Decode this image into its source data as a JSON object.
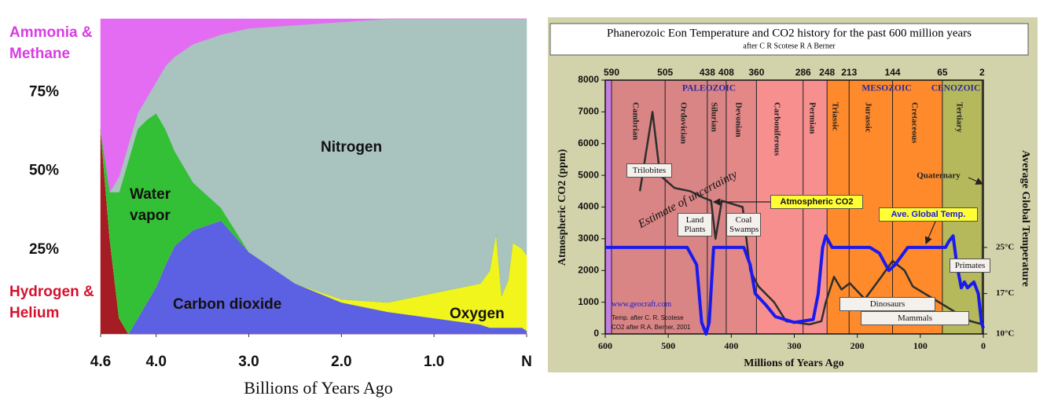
{
  "chart_data": [
    {
      "type": "area",
      "stacked": true,
      "x_label": "Billions of Years Ago",
      "x": [
        4.6,
        4.5,
        4.4,
        4.3,
        4.2,
        4.1,
        4.0,
        3.9,
        3.8,
        3.6,
        3.3,
        3.0,
        2.5,
        2.0,
        1.5,
        1.0,
        0.5,
        0.4,
        0.33,
        0.27,
        0.2,
        0.15,
        0.05,
        0
      ],
      "xlim": [
        4.6,
        0
      ],
      "xticks": [
        4.6,
        {
          "value": 4.0,
          "label": "4.0"
        },
        {
          "value": 3.0,
          "label": "3.0"
        },
        {
          "value": 2.0,
          "label": "2.0"
        },
        {
          "value": 1.0,
          "label": "1.0"
        },
        {
          "value": 0,
          "label": "N"
        }
      ],
      "ylim": [
        0,
        100
      ],
      "yticks": [
        {
          "value": 25,
          "label": "25%"
        },
        {
          "value": 50,
          "label": "50%"
        },
        {
          "value": 75,
          "label": "75%"
        }
      ],
      "series": [
        {
          "name": "Hydrogen & Helium",
          "color": "#a51c24",
          "values": [
            65,
            30,
            5,
            0,
            0,
            0,
            0,
            0,
            0,
            0,
            0,
            0,
            0,
            0,
            0,
            0,
            0,
            0,
            0,
            0,
            0,
            0,
            0,
            0
          ]
        },
        {
          "name": "Carbon dioxide",
          "color": "#5c60e2",
          "values": [
            0,
            0,
            0,
            0,
            5,
            10,
            15,
            22,
            28,
            33,
            36,
            26,
            16,
            10,
            7,
            5,
            3,
            2,
            2,
            2,
            2,
            2,
            2,
            1
          ]
        },
        {
          "name": "Oxygen",
          "color": "#f2f51c",
          "values": [
            0,
            0,
            0,
            0,
            0,
            0,
            0,
            0,
            0,
            0,
            0,
            0,
            0,
            1,
            3,
            8,
            13,
            18,
            30,
            10,
            15,
            27,
            25,
            24
          ]
        },
        {
          "name": "Water vapor",
          "color": "#34c036",
          "values": [
            0,
            15,
            40,
            55,
            60,
            58,
            55,
            43,
            30,
            15,
            4,
            0,
            0,
            0,
            0,
            0,
            0,
            0,
            0,
            0,
            0,
            0,
            0,
            0
          ]
        },
        {
          "name": "Nitrogen",
          "color": "#a9c3bf",
          "values": [
            0,
            0,
            5,
            5,
            5,
            7,
            10,
            20,
            30,
            44,
            55,
            71,
            82,
            88,
            90,
            87,
            84,
            80,
            68,
            88,
            83,
            71,
            73,
            75
          ]
        },
        {
          "name": "Ammonia & Methane",
          "color": "#e46cf2",
          "values": [
            35,
            55,
            50,
            40,
            30,
            25,
            20,
            15,
            12,
            8,
            5,
            3,
            2,
            1,
            0,
            0,
            0,
            0,
            0,
            0,
            0,
            0,
            0,
            0
          ]
        }
      ]
    },
    {
      "type": "line",
      "title": "Phanerozoic Eon  Temperature and CO2 history for the past 600 million years",
      "subtitle": "after C R Scotese  R A Berner",
      "x_label": "Millions of Years Ago",
      "y_label": "Atmospheric CO2 (ppm)",
      "y2_label": "Average Global Temperature",
      "xlim": [
        600,
        0
      ],
      "xticks": [
        600,
        500,
        400,
        300,
        200,
        100,
        0
      ],
      "top_ticks": [
        590,
        505,
        438,
        408,
        360,
        286,
        248,
        213,
        144,
        65,
        2
      ],
      "background_color": "#c57fe0",
      "periods": [
        {
          "name": "Cambrian",
          "color": "#d98585"
        },
        {
          "name": "Ordovician",
          "color": "#d98585"
        },
        {
          "name": "Silurian",
          "color": "#d98585"
        },
        {
          "name": "Devonian",
          "color": "#e38787"
        },
        {
          "name": "Carboniferous",
          "color": "#f88f8f"
        },
        {
          "name": "Permian",
          "color": "#f88f8f"
        },
        {
          "name": "Triassic",
          "color": "#ff8a2c"
        },
        {
          "name": "Jurassic",
          "color": "#ff8a2c"
        },
        {
          "name": "Cretaceous",
          "color": "#ff8a2c"
        },
        {
          "name": "Tertiary",
          "color": "#b6b85c"
        },
        {
          "name": "Quaternary",
          "color": "#c9c972"
        }
      ],
      "eras": [
        "PALEOZOIC",
        "MESOZOIC",
        "CENOZOIC"
      ],
      "ylim": [
        0,
        8000
      ],
      "yticks": [
        0,
        1000,
        2000,
        3000,
        4000,
        5000,
        6000,
        7000,
        8000
      ],
      "y2lim": [
        10,
        54
      ],
      "y2ticks": [
        {
          "value": 10,
          "label": "10°C"
        },
        {
          "value": 17,
          "label": "17°C"
        },
        {
          "value": 25,
          "label": "25°C"
        }
      ],
      "series": [
        {
          "name": "Atmospheric CO2",
          "color": "#2e2e2e",
          "x": [
            545,
            525,
            513,
            490,
            465,
            445,
            432,
            425,
            415,
            382,
            370,
            357,
            332,
            313,
            276,
            257,
            250,
            237,
            225,
            212,
            188,
            162,
            144,
            125,
            112,
            87,
            62,
            37,
            20,
            1
          ],
          "values": [
            4500,
            7000,
            5000,
            4600,
            4500,
            4300,
            4200,
            3000,
            4200,
            4000,
            2000,
            1500,
            1000,
            400,
            300,
            400,
            1000,
            1800,
            1400,
            1600,
            1100,
            1800,
            2300,
            2000,
            1500,
            1200,
            900,
            600,
            400,
            300
          ]
        },
        {
          "name": "Ave. Global Temp.",
          "color": "#1a1aee",
          "axis": "y2",
          "x": [
            600,
            470,
            455,
            447,
            440,
            435,
            428,
            380,
            370,
            362,
            345,
            330,
            300,
            270,
            262,
            255,
            250,
            240,
            180,
            165,
            150,
            140,
            120,
            60,
            55,
            48,
            42,
            35,
            30,
            25,
            15,
            8,
            3,
            0
          ],
          "values": [
            25,
            25,
            22,
            12,
            10,
            12,
            25,
            25,
            22,
            17,
            15,
            13,
            12,
            12.5,
            17,
            25,
            27,
            25,
            25,
            24,
            21,
            22,
            25,
            25,
            26,
            27,
            22,
            18,
            19,
            18,
            19,
            17,
            12,
            11
          ]
        }
      ],
      "annotations": [
        "Trilobites",
        "Estimate of uncertainty",
        "Land Plants",
        "Coal Swamps",
        "Primates",
        "Dinosaurs",
        "Mammals",
        "www.geocraft.com",
        "Temp. after C. R. Scotese",
        "CO2 after R.A. Berner, 2001"
      ]
    }
  ]
}
